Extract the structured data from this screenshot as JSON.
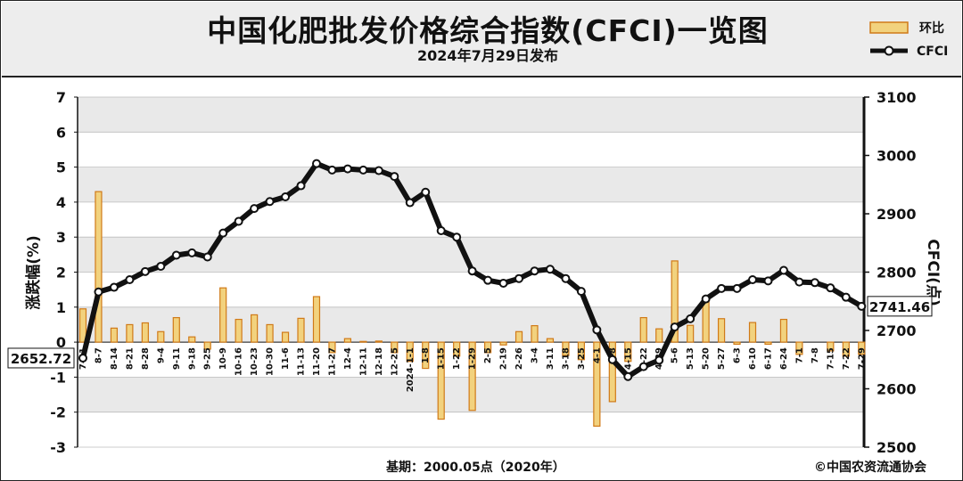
{
  "chart_data": {
    "type": "bar+line",
    "title": "中国化肥批发价格综合指数(CFCI)一览图",
    "subtitle": "2024年7月29日发布",
    "legend": [
      {
        "label": "环比",
        "type": "bar"
      },
      {
        "label": "CFCI",
        "type": "line"
      }
    ],
    "legend_position": "top-right",
    "y_left": {
      "label": "涨跌幅(%)",
      "min": -3,
      "max": 7,
      "ticks": [
        -3,
        -2,
        -1,
        0,
        1,
        2,
        3,
        4,
        5,
        6,
        7
      ]
    },
    "y_right": {
      "label": "CFCI(点)",
      "min": 2500,
      "max": 3100,
      "ticks": [
        2500,
        2600,
        2700,
        2800,
        2900,
        3000,
        3100
      ]
    },
    "grid": true,
    "categories": [
      "7-31",
      "8-7",
      "8-14",
      "8-21",
      "8-28",
      "9-4",
      "9-11",
      "9-18",
      "9-25",
      "10-9",
      "10-16",
      "10-23",
      "10-30",
      "11-6",
      "11-13",
      "11-20",
      "11-27",
      "12-4",
      "12-11",
      "12-18",
      "12-25",
      "2024-1-1",
      "1-8",
      "1-15",
      "1-22",
      "1-29",
      "2-5",
      "2-19",
      "2-26",
      "3-4",
      "3-11",
      "3-18",
      "3-25",
      "4-1",
      "4-8",
      "4-15",
      "4-22",
      "4-29",
      "5-6",
      "5-13",
      "5-20",
      "5-27",
      "6-3",
      "6-10",
      "6-17",
      "6-24",
      "7-1",
      "7-8",
      "7-15",
      "7-22",
      "7-29"
    ],
    "series": [
      {
        "name": "环比",
        "type": "bar",
        "values": [
          0.95,
          4.3,
          0.4,
          0.5,
          0.55,
          0.3,
          0.7,
          0.15,
          -0.2,
          1.55,
          0.65,
          0.78,
          0.5,
          0.28,
          0.68,
          1.3,
          -0.3,
          0.1,
          0.02,
          0.03,
          -0.3,
          -0.55,
          -0.75,
          -2.2,
          -0.4,
          -1.95,
          -0.3,
          -0.08,
          0.3,
          0.47,
          0.1,
          -0.38,
          -0.5,
          -2.4,
          -1.7,
          -0.55,
          0.7,
          0.38,
          2.32,
          0.48,
          1.3,
          0.67,
          -0.06,
          0.56,
          -0.06,
          0.65,
          -0.35,
          0.0,
          -0.25,
          -0.4,
          -0.35
        ]
      },
      {
        "name": "CFCI",
        "type": "line",
        "values": [
          2652.72,
          2766,
          2774,
          2787,
          2801,
          2810,
          2829,
          2833,
          2826,
          2867,
          2887,
          2909,
          2921,
          2929,
          2948,
          2986,
          2975,
          2977,
          2975,
          2974,
          2964,
          2919,
          2937,
          2871,
          2860,
          2802,
          2786,
          2781,
          2789,
          2802,
          2805,
          2789,
          2767,
          2701,
          2650,
          2621,
          2638,
          2649,
          2706,
          2720,
          2754,
          2772,
          2772,
          2787,
          2785,
          2803,
          2783,
          2782,
          2773,
          2757,
          2741.46
        ]
      }
    ],
    "labels": {
      "start": "2652.72",
      "end": "2741.46"
    },
    "footer_left": "基期：2000.05点（2020年）",
    "footer_right": "©中国农资流通协会"
  }
}
